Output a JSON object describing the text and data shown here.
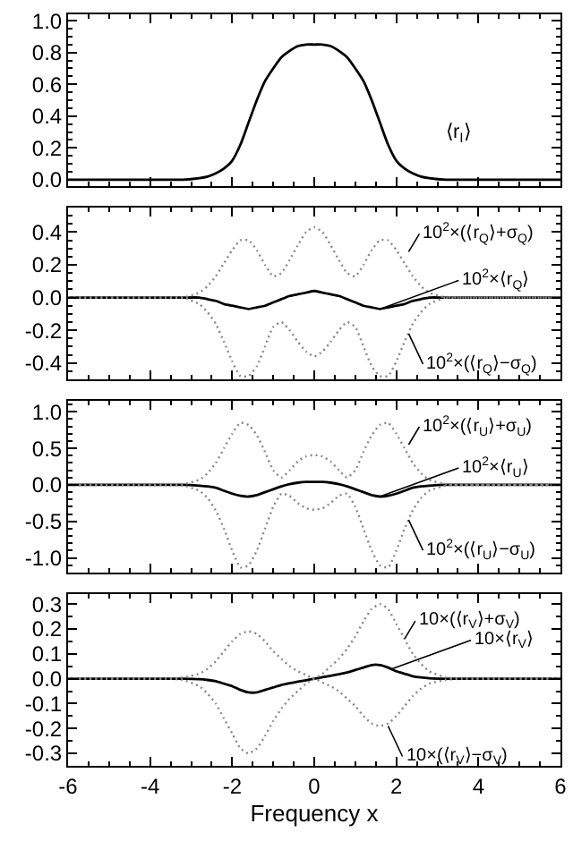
{
  "chart_data": [
    {
      "type": "line",
      "x": [
        -6,
        -3.6,
        -3.2,
        -2.8,
        -2.6,
        -2.4,
        -2.2,
        -2.0,
        -1.8,
        -1.6,
        -1.4,
        -1.2,
        -1.0,
        -0.8,
        -0.6,
        -0.4,
        -0.2,
        0,
        0.2,
        0.4,
        0.6,
        0.8,
        1.0,
        1.2,
        1.4,
        1.6,
        1.8,
        2.0,
        2.2,
        2.4,
        2.6,
        2.8,
        3.2,
        3.6,
        6
      ],
      "series": [
        {
          "color": "#000000",
          "line_style": "solid",
          "values": [
            0,
            0,
            0,
            0.01,
            0.02,
            0.04,
            0.07,
            0.12,
            0.22,
            0.36,
            0.5,
            0.62,
            0.7,
            0.77,
            0.81,
            0.84,
            0.85,
            0.85,
            0.85,
            0.84,
            0.81,
            0.77,
            0.7,
            0.62,
            0.5,
            0.36,
            0.22,
            0.12,
            0.07,
            0.04,
            0.02,
            0.01,
            0,
            0,
            0
          ]
        }
      ],
      "xlim": [
        -6,
        6
      ],
      "xticks": [
        -6,
        -4,
        -2,
        0,
        2,
        4,
        6
      ],
      "ylim": [
        -0.04,
        1.04
      ],
      "yticks": [
        {
          "value": 0,
          "label": "0.0"
        },
        {
          "value": 0.2,
          "label": "0.2"
        },
        {
          "value": 0.4,
          "label": "0.4"
        },
        {
          "value": 0.6,
          "label": "0.6"
        },
        {
          "value": 0.8,
          "label": "0.8"
        },
        {
          "value": 1,
          "label": "1.0"
        }
      ],
      "tick_labels": "y",
      "annotations": [
        "⟨r$_{I}$⟩"
      ]
    },
    {
      "type": "line",
      "x": [
        -6,
        -3.6,
        -3.2,
        -2.8,
        -2.6,
        -2.4,
        -2.2,
        -2.0,
        -1.8,
        -1.6,
        -1.4,
        -1.2,
        -1.0,
        -0.8,
        -0.6,
        -0.4,
        -0.2,
        0,
        0.2,
        0.4,
        0.6,
        0.8,
        1.0,
        1.2,
        1.4,
        1.6,
        1.8,
        2.0,
        2.2,
        2.4,
        2.6,
        2.8,
        3.2,
        3.6,
        6
      ],
      "series": [
        {
          "color": "#000000",
          "line_style": "solid",
          "values": [
            0,
            0,
            0,
            0,
            -0.01,
            -0.02,
            -0.04,
            -0.05,
            -0.06,
            -0.07,
            -0.06,
            -0.05,
            -0.03,
            -0.01,
            0.01,
            0.02,
            0.03,
            0.04,
            0.03,
            0.02,
            0.01,
            -0.01,
            -0.03,
            -0.05,
            -0.06,
            -0.07,
            -0.06,
            -0.05,
            -0.04,
            -0.02,
            -0.01,
            0,
            0,
            0,
            0
          ]
        },
        {
          "color": "#888888",
          "line_style": "dotted",
          "values": [
            0,
            0,
            0,
            0.03,
            0.07,
            0.13,
            0.21,
            0.29,
            0.35,
            0.35,
            0.29,
            0.2,
            0.13,
            0.15,
            0.23,
            0.32,
            0.4,
            0.43,
            0.4,
            0.32,
            0.23,
            0.15,
            0.13,
            0.2,
            0.29,
            0.35,
            0.35,
            0.29,
            0.21,
            0.13,
            0.07,
            0.03,
            0,
            0,
            0
          ]
        },
        {
          "color": "#888888",
          "line_style": "dotted",
          "values": [
            0,
            0,
            0,
            -0.04,
            -0.09,
            -0.16,
            -0.27,
            -0.39,
            -0.48,
            -0.48,
            -0.42,
            -0.3,
            -0.18,
            -0.15,
            -0.2,
            -0.27,
            -0.33,
            -0.36,
            -0.33,
            -0.27,
            -0.2,
            -0.15,
            -0.18,
            -0.3,
            -0.42,
            -0.48,
            -0.48,
            -0.39,
            -0.27,
            -0.16,
            -0.09,
            -0.04,
            0,
            0,
            0
          ]
        }
      ],
      "xlim": [
        -6,
        6
      ],
      "xticks": [
        -6,
        -4,
        -2,
        0,
        2,
        4,
        6
      ],
      "ylim": [
        -0.5,
        0.55
      ],
      "yticks": [
        {
          "value": -0.4,
          "label": "-0.4"
        },
        {
          "value": -0.2,
          "label": "-0.2"
        },
        {
          "value": 0,
          "label": "0.0"
        },
        {
          "value": 0.2,
          "label": "0.2"
        },
        {
          "value": 0.4,
          "label": "0.4"
        }
      ],
      "tick_labels": "y",
      "annotations": [
        {
          "text": "10$^{2}$×(⟨r$_{Q}$⟩+σ$_{Q}$)",
          "x": 2.3,
          "y": 0.28
        },
        {
          "text": "10$^{2}$×⟨r$_{Q}$⟩",
          "x": 1.6,
          "y": -0.07
        },
        {
          "text": "10$^{2}$×(⟨r$_{Q}$⟩−σ$_{Q}$)",
          "x": 2.3,
          "y": -0.22
        }
      ]
    },
    {
      "type": "line",
      "x": [
        -6,
        -3.6,
        -3.2,
        -2.8,
        -2.6,
        -2.4,
        -2.2,
        -2.0,
        -1.8,
        -1.6,
        -1.4,
        -1.2,
        -1.0,
        -0.8,
        -0.6,
        -0.4,
        -0.2,
        0,
        0.2,
        0.4,
        0.6,
        0.8,
        1.0,
        1.2,
        1.4,
        1.6,
        1.8,
        2.0,
        2.2,
        2.4,
        2.6,
        2.8,
        3.2,
        3.6,
        6
      ],
      "series": [
        {
          "color": "#000000",
          "line_style": "solid",
          "values": [
            0,
            0,
            0,
            -0.01,
            -0.02,
            -0.04,
            -0.08,
            -0.12,
            -0.15,
            -0.16,
            -0.14,
            -0.1,
            -0.06,
            -0.02,
            0.01,
            0.03,
            0.04,
            0.04,
            0.04,
            0.03,
            0.01,
            -0.02,
            -0.06,
            -0.1,
            -0.14,
            -0.16,
            -0.15,
            -0.12,
            -0.08,
            -0.04,
            -0.02,
            -0.01,
            0,
            0,
            0
          ]
        },
        {
          "color": "#888888",
          "line_style": "dotted",
          "values": [
            0,
            0,
            0.01,
            0.07,
            0.16,
            0.3,
            0.5,
            0.7,
            0.85,
            0.82,
            0.68,
            0.45,
            0.2,
            0.1,
            0.2,
            0.32,
            0.39,
            0.41,
            0.39,
            0.32,
            0.2,
            0.1,
            0.2,
            0.45,
            0.68,
            0.82,
            0.85,
            0.7,
            0.5,
            0.3,
            0.16,
            0.07,
            0.01,
            0,
            0
          ]
        },
        {
          "color": "#888888",
          "line_style": "dotted",
          "values": [
            0,
            0,
            -0.01,
            -0.08,
            -0.18,
            -0.35,
            -0.6,
            -0.9,
            -1.13,
            -1.1,
            -0.9,
            -0.6,
            -0.3,
            -0.12,
            -0.15,
            -0.25,
            -0.32,
            -0.34,
            -0.32,
            -0.25,
            -0.15,
            -0.12,
            -0.3,
            -0.6,
            -0.9,
            -1.1,
            -1.13,
            -0.9,
            -0.6,
            -0.35,
            -0.18,
            -0.08,
            -0.01,
            0,
            0
          ]
        }
      ],
      "xlim": [
        -6,
        6
      ],
      "xticks": [
        -6,
        -4,
        -2,
        0,
        2,
        4,
        6
      ],
      "ylim": [
        -1.2,
        1.15
      ],
      "yticks": [
        {
          "value": -1,
          "label": "-1.0"
        },
        {
          "value": -0.5,
          "label": "-0.5"
        },
        {
          "value": 0,
          "label": "0.0"
        },
        {
          "value": 0.5,
          "label": "0.5"
        },
        {
          "value": 1,
          "label": "1.0"
        }
      ],
      "tick_labels": "y",
      "annotations": [
        {
          "text": "10$^{2}$×(⟨r$_{U}$⟩+σ$_{U}$)",
          "x": 2.3,
          "y": 0.55
        },
        {
          "text": "10$^{2}$×⟨r$_{U}$⟩",
          "x": 1.6,
          "y": -0.16
        },
        {
          "text": "10$^{2}$×(⟨r$_{U}$⟩−σ$_{U}$)",
          "x": 2.3,
          "y": -0.48
        }
      ]
    },
    {
      "type": "line",
      "x": [
        -6,
        -3.6,
        -3.2,
        -2.8,
        -2.6,
        -2.4,
        -2.2,
        -2.0,
        -1.8,
        -1.6,
        -1.4,
        -1.2,
        -1.0,
        -0.8,
        -0.6,
        -0.4,
        -0.2,
        0,
        0.2,
        0.4,
        0.6,
        0.8,
        1.0,
        1.2,
        1.4,
        1.6,
        1.8,
        2.0,
        2.2,
        2.4,
        2.6,
        2.8,
        3.2,
        3.6,
        6
      ],
      "series": [
        {
          "color": "#000000",
          "line_style": "solid",
          "values": [
            0,
            0,
            0,
            -0.002,
            -0.005,
            -0.01,
            -0.02,
            -0.03,
            -0.045,
            -0.055,
            -0.055,
            -0.045,
            -0.035,
            -0.025,
            -0.018,
            -0.012,
            -0.006,
            0,
            0.006,
            0.012,
            0.018,
            0.025,
            0.035,
            0.045,
            0.055,
            0.055,
            0.045,
            0.03,
            0.02,
            0.01,
            0.005,
            0.002,
            0,
            0,
            0
          ]
        },
        {
          "color": "#888888",
          "line_style": "dotted",
          "values": [
            0,
            0,
            0.005,
            0.02,
            0.04,
            0.07,
            0.11,
            0.15,
            0.18,
            0.19,
            0.18,
            0.15,
            0.11,
            0.08,
            0.05,
            0.03,
            0.015,
            0,
            0.02,
            0.05,
            0.08,
            0.12,
            0.17,
            0.23,
            0.28,
            0.3,
            0.28,
            0.22,
            0.16,
            0.1,
            0.06,
            0.03,
            0.005,
            0,
            0
          ]
        },
        {
          "color": "#888888",
          "line_style": "dotted",
          "values": [
            0,
            0,
            -0.005,
            -0.03,
            -0.06,
            -0.1,
            -0.16,
            -0.22,
            -0.28,
            -0.3,
            -0.28,
            -0.23,
            -0.17,
            -0.12,
            -0.08,
            -0.05,
            -0.02,
            0,
            -0.015,
            -0.03,
            -0.05,
            -0.08,
            -0.11,
            -0.15,
            -0.18,
            -0.19,
            -0.18,
            -0.15,
            -0.11,
            -0.07,
            -0.04,
            -0.02,
            -0.005,
            0,
            0
          ]
        }
      ],
      "xlim": [
        -6,
        6
      ],
      "xticks": [
        -6,
        -4,
        -2,
        0,
        2,
        4,
        6
      ],
      "ylim": [
        -0.35,
        0.34
      ],
      "yticks": [
        {
          "value": -0.3,
          "label": "-0.3"
        },
        {
          "value": -0.2,
          "label": "-0.2"
        },
        {
          "value": -0.1,
          "label": "-0.1"
        },
        {
          "value": 0,
          "label": "0.0"
        },
        {
          "value": 0.1,
          "label": "0.1"
        },
        {
          "value": 0.2,
          "label": "0.2"
        },
        {
          "value": 0.3,
          "label": "0.3"
        }
      ],
      "xlabel": "Frequency x",
      "annotations": [
        {
          "text": "10×(⟨r$_{V}$⟩+σ$_{V}$)",
          "x": 2.2,
          "y": 0.16
        },
        {
          "text": "10×⟨r$_{V}$⟩",
          "x": 1.9,
          "y": 0.04
        },
        {
          "text": "10×(⟨r$_{V}$⟩−σ$_{V}$)",
          "x": 1.8,
          "y": -0.19
        }
      ]
    }
  ]
}
